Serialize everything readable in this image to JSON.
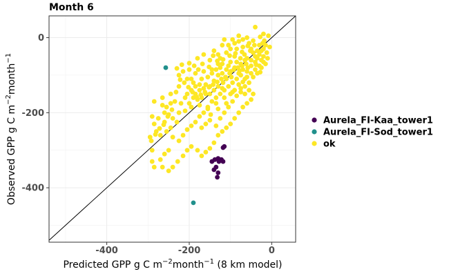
{
  "chart_data": {
    "type": "scatter",
    "title": "Month 6",
    "xlabel": {
      "base": "Predicted GPP g C m",
      "exp1": "−2",
      "mid": "month",
      "exp2": "−1",
      "suffix": " (8 km model)"
    },
    "ylabel": {
      "base": "Observed GPP g C m",
      "exp1": "−2",
      "mid": "month",
      "exp2": "−1",
      "suffix": ""
    },
    "xlim": [
      -540,
      58
    ],
    "ylim": [
      -545,
      58
    ],
    "x_ticks": [
      {
        "value": -400,
        "label": "-400"
      },
      {
        "value": -200,
        "label": "-200"
      },
      {
        "value": 0,
        "label": "0"
      }
    ],
    "y_ticks": [
      {
        "value": 0,
        "label": "0"
      },
      {
        "value": -200,
        "label": "-200"
      },
      {
        "value": -400,
        "label": "-400"
      }
    ],
    "grid": true,
    "reference_line": "1:1",
    "legend_position": "right",
    "series": [
      {
        "name": "Aurela_FI-Kaa_tower1",
        "color": "#440154",
        "points": [
          [
            -115,
            -290
          ],
          [
            -118,
            -293
          ],
          [
            -138,
            -325
          ],
          [
            -130,
            -322
          ],
          [
            -122,
            -325
          ],
          [
            -118,
            -330
          ],
          [
            -128,
            -330
          ],
          [
            -145,
            -330
          ],
          [
            -135,
            -345
          ],
          [
            -140,
            -352
          ],
          [
            -130,
            -360
          ],
          [
            -132,
            -372
          ]
        ]
      },
      {
        "name": "Aurela_FI-Sod_tower1",
        "color": "#21908c",
        "points": [
          [
            -257,
            -80
          ],
          [
            -190,
            -440
          ]
        ]
      },
      {
        "name": "ok",
        "color": "#fde725",
        "points": [
          [
            -40,
            28
          ],
          [
            -20,
            10
          ],
          [
            -60,
            0
          ],
          [
            -80,
            -10
          ],
          [
            -30,
            -20
          ],
          [
            -50,
            -30
          ],
          [
            -70,
            -25
          ],
          [
            -95,
            -5
          ],
          [
            -120,
            -20
          ],
          [
            -140,
            -35
          ],
          [
            -110,
            -40
          ],
          [
            -90,
            -50
          ],
          [
            -60,
            -55
          ],
          [
            -45,
            -40
          ],
          [
            -25,
            -60
          ],
          [
            -75,
            -70
          ],
          [
            -100,
            -65
          ],
          [
            -130,
            -70
          ],
          [
            -150,
            -60
          ],
          [
            -165,
            -45
          ],
          [
            -180,
            -55
          ],
          [
            -200,
            -85
          ],
          [
            -215,
            -90
          ],
          [
            -225,
            -100
          ],
          [
            -190,
            -120
          ],
          [
            -170,
            -110
          ],
          [
            -160,
            -125
          ],
          [
            -150,
            -130
          ],
          [
            -140,
            -115
          ],
          [
            -130,
            -100
          ],
          [
            -120,
            -95
          ],
          [
            -110,
            -110
          ],
          [
            -100,
            -90
          ],
          [
            -90,
            -80
          ],
          [
            -80,
            -95
          ],
          [
            -70,
            -85
          ],
          [
            -60,
            -90
          ],
          [
            -50,
            -75
          ],
          [
            -40,
            -65
          ],
          [
            -30,
            -45
          ],
          [
            -20,
            -30
          ],
          [
            -15,
            -20
          ],
          [
            -35,
            -35
          ],
          [
            -55,
            -15
          ],
          [
            -85,
            -30
          ],
          [
            -105,
            -20
          ],
          [
            -115,
            -5
          ],
          [
            -125,
            -55
          ],
          [
            -135,
            -85
          ],
          [
            -145,
            -95
          ],
          [
            -155,
            -105
          ],
          [
            -165,
            -135
          ],
          [
            -175,
            -140
          ],
          [
            -185,
            -150
          ],
          [
            -195,
            -140
          ],
          [
            -205,
            -150
          ],
          [
            -210,
            -160
          ],
          [
            -220,
            -175
          ],
          [
            -235,
            -170
          ],
          [
            -245,
            -175
          ],
          [
            -255,
            -185
          ],
          [
            -265,
            -180
          ],
          [
            -260,
            -200
          ],
          [
            -250,
            -205
          ],
          [
            -240,
            -215
          ],
          [
            -230,
            -225
          ],
          [
            -245,
            -240
          ],
          [
            -260,
            -225
          ],
          [
            -275,
            -215
          ],
          [
            -285,
            -230
          ],
          [
            -290,
            -210
          ],
          [
            -280,
            -250
          ],
          [
            -270,
            -260
          ],
          [
            -255,
            -250
          ],
          [
            -240,
            -265
          ],
          [
            -225,
            -275
          ],
          [
            -215,
            -260
          ],
          [
            -205,
            -245
          ],
          [
            -195,
            -235
          ],
          [
            -185,
            -225
          ],
          [
            -175,
            -210
          ],
          [
            -165,
            -200
          ],
          [
            -155,
            -185
          ],
          [
            -145,
            -170
          ],
          [
            -135,
            -160
          ],
          [
            -125,
            -150
          ],
          [
            -115,
            -140
          ],
          [
            -105,
            -130
          ],
          [
            -95,
            -120
          ],
          [
            -85,
            -110
          ],
          [
            -75,
            -100
          ],
          [
            -65,
            -110
          ],
          [
            -55,
            -120
          ],
          [
            -45,
            -105
          ],
          [
            -35,
            -95
          ],
          [
            -25,
            -80
          ],
          [
            -15,
            -70
          ],
          [
            -10,
            -55
          ],
          [
            -20,
            -50
          ],
          [
            -40,
            -50
          ],
          [
            -65,
            -60
          ],
          [
            -85,
            -65
          ],
          [
            -105,
            -75
          ],
          [
            -125,
            -80
          ],
          [
            -145,
            -85
          ],
          [
            -165,
            -90
          ],
          [
            -185,
            -95
          ],
          [
            -205,
            -110
          ],
          [
            -225,
            -130
          ],
          [
            -245,
            -150
          ],
          [
            -265,
            -160
          ],
          [
            -285,
            -170
          ],
          [
            -295,
            -265
          ],
          [
            -290,
            -330
          ],
          [
            -285,
            -345
          ],
          [
            -270,
            -325
          ],
          [
            -260,
            -310
          ],
          [
            -250,
            -300
          ],
          [
            -265,
            -345
          ],
          [
            -290,
            -300
          ],
          [
            -250,
            -355
          ],
          [
            -240,
            -345
          ],
          [
            -228,
            -330
          ],
          [
            -215,
            -315
          ],
          [
            -205,
            -300
          ],
          [
            -195,
            -290
          ],
          [
            -180,
            -300
          ],
          [
            -170,
            -315
          ],
          [
            -160,
            -305
          ],
          [
            -150,
            -295
          ],
          [
            -140,
            -280
          ],
          [
            -130,
            -260
          ],
          [
            -120,
            -250
          ],
          [
            -110,
            -240
          ],
          [
            -100,
            -230
          ],
          [
            -90,
            -215
          ],
          [
            -80,
            -200
          ],
          [
            -70,
            -185
          ],
          [
            -60,
            -175
          ],
          [
            -50,
            -165
          ],
          [
            -45,
            -150
          ],
          [
            -55,
            -140
          ],
          [
            -65,
            -130
          ],
          [
            -75,
            -135
          ],
          [
            -95,
            -145
          ],
          [
            -115,
            -160
          ],
          [
            -135,
            -175
          ],
          [
            -155,
            -190
          ],
          [
            -175,
            -180
          ],
          [
            -195,
            -185
          ],
          [
            -210,
            -195
          ],
          [
            -225,
            -200
          ],
          [
            -150,
            -220
          ],
          [
            -160,
            -230
          ],
          [
            -170,
            -240
          ],
          [
            -135,
            -235
          ],
          [
            -125,
            -215
          ],
          [
            -115,
            -200
          ],
          [
            -105,
            -185
          ],
          [
            -95,
            -170
          ],
          [
            -85,
            -155
          ],
          [
            -75,
            -145
          ],
          [
            -65,
            -150
          ],
          [
            -110,
            -175
          ],
          [
            -130,
            -190
          ],
          [
            -148,
            -205
          ],
          [
            -118,
            -120
          ],
          [
            -98,
            -105
          ],
          [
            -78,
            -88
          ],
          [
            -58,
            -80
          ],
          [
            -38,
            -72
          ],
          [
            -28,
            -92
          ],
          [
            -12,
            -40
          ],
          [
            -5,
            -25
          ],
          [
            -8,
            5
          ],
          [
            -18,
            -8
          ],
          [
            -28,
            2
          ],
          [
            -45,
            -8
          ],
          [
            -58,
            -22
          ],
          [
            -72,
            -38
          ],
          [
            -88,
            -42
          ],
          [
            -102,
            -48
          ],
          [
            -118,
            -58
          ],
          [
            -132,
            -62
          ],
          [
            -142,
            -48
          ],
          [
            -152,
            -78
          ],
          [
            -168,
            -70
          ],
          [
            -178,
            -85
          ],
          [
            -188,
            -75
          ],
          [
            -200,
            -68
          ],
          [
            -218,
            -72
          ],
          [
            -230,
            -82
          ],
          [
            -160,
            -150
          ],
          [
            -170,
            -160
          ],
          [
            -180,
            -165
          ],
          [
            -190,
            -160
          ],
          [
            -200,
            -175
          ],
          [
            -140,
            -140
          ],
          [
            -150,
            -150
          ],
          [
            -130,
            -130
          ],
          [
            -120,
            -135
          ],
          [
            -100,
            -150
          ],
          [
            -90,
            -140
          ],
          [
            -80,
            -125
          ],
          [
            -70,
            -118
          ],
          [
            -60,
            -105
          ],
          [
            -50,
            -95
          ],
          [
            -40,
            -85
          ],
          [
            -30,
            -75
          ],
          [
            -20,
            -65
          ],
          [
            -175,
            -125
          ],
          [
            -185,
            -130
          ],
          [
            -195,
            -110
          ],
          [
            -110,
            -85
          ],
          [
            -120,
            -70
          ],
          [
            -130,
            -45
          ],
          [
            -100,
            -30
          ],
          [
            -90,
            -15
          ],
          [
            -80,
            5
          ],
          [
            -70,
            -5
          ],
          [
            -66,
            -45
          ],
          [
            -76,
            -55
          ],
          [
            -50,
            -60
          ],
          [
            -35,
            -55
          ],
          [
            -25,
            -35
          ],
          [
            -22,
            -15
          ],
          [
            -42,
            -20
          ],
          [
            -52,
            -35
          ],
          [
            -62,
            -70
          ],
          [
            -72,
            -75
          ],
          [
            -82,
            -80
          ],
          [
            -92,
            -85
          ],
          [
            -102,
            -95
          ],
          [
            -112,
            -105
          ],
          [
            -122,
            -110
          ],
          [
            -132,
            -118
          ],
          [
            -142,
            -125
          ],
          [
            -152,
            -132
          ],
          [
            -162,
            -145
          ],
          [
            -172,
            -152
          ],
          [
            -182,
            -158
          ],
          [
            -192,
            -145
          ],
          [
            -202,
            -132
          ],
          [
            -212,
            -120
          ],
          [
            -222,
            -112
          ],
          [
            -232,
            -145
          ],
          [
            -242,
            -192
          ],
          [
            -252,
            -210
          ],
          [
            -262,
            -232
          ],
          [
            -272,
            -242
          ],
          [
            -282,
            -258
          ],
          [
            -292,
            -275
          ]
        ]
      }
    ]
  }
}
